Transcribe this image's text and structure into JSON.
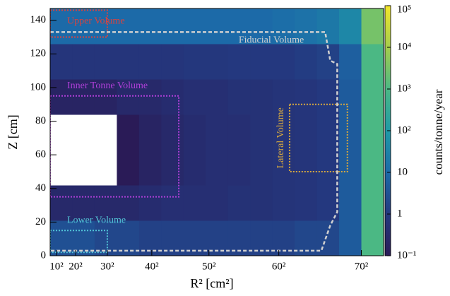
{
  "chart_data": {
    "type": "heatmap",
    "xlabel": "R² [cm²]",
    "ylabel": "Z [cm]",
    "colorbar_label": "counts/tonne/year",
    "xlim": [
      0,
      5250
    ],
    "ylim": [
      0,
      147
    ],
    "xticks": [
      {
        "value": 100,
        "label": "10²"
      },
      {
        "value": 400,
        "label": "20²"
      },
      {
        "value": 900,
        "label": "30²"
      },
      {
        "value": 1600,
        "label": "40²"
      },
      {
        "value": 2500,
        "label": "50²"
      },
      {
        "value": 3600,
        "label": "60²"
      },
      {
        "value": 4900,
        "label": "70²"
      }
    ],
    "yticks": [
      0,
      20,
      40,
      60,
      80,
      100,
      120,
      140
    ],
    "clim": [
      0.1,
      100000
    ],
    "clog": true,
    "cticks": [
      {
        "value": 0.1,
        "label": "10⁻¹"
      },
      1,
      10,
      {
        "value": 100,
        "label": "10²"
      },
      {
        "value": 1000,
        "label": "10³"
      },
      {
        "value": 10000,
        "label": "10⁴"
      },
      {
        "value": 100000,
        "label": "10⁵"
      }
    ],
    "colormap": [
      "#2a1b57",
      "#24387f",
      "#1c6aa8",
      "#1f9aa6",
      "#4bb884",
      "#a5cc4c",
      "#f3e62a"
    ],
    "xbins": [
      0,
      350,
      700,
      1050,
      1400,
      1750,
      2100,
      2450,
      2800,
      3150,
      3500,
      3850,
      4200,
      4550,
      4900,
      5250
    ],
    "ybins": [
      0,
      21,
      42,
      63,
      84,
      105,
      126,
      147
    ],
    "z": [
      [
        3,
        3,
        2,
        2,
        1.5,
        1.5,
        1.5,
        1.5,
        1.5,
        1.5,
        1.5,
        2,
        2,
        5,
        1000
      ],
      [
        0.3,
        0.3,
        0.3,
        0.3,
        0.4,
        0.5,
        0.5,
        0.5,
        0.6,
        0.6,
        0.7,
        0.8,
        1,
        5,
        1000
      ],
      [
        0,
        0,
        0,
        0.1,
        0.2,
        0.3,
        0.4,
        0.5,
        0.5,
        0.6,
        0.7,
        0.8,
        1,
        5,
        1000
      ],
      [
        0,
        0,
        0,
        0.1,
        0.2,
        0.3,
        0.4,
        0.5,
        0.5,
        0.6,
        0.7,
        0.8,
        1,
        5,
        1000
      ],
      [
        0.2,
        0.2,
        0.2,
        0.3,
        0.3,
        0.4,
        0.5,
        0.5,
        0.6,
        0.6,
        0.7,
        0.8,
        1,
        5,
        1000
      ],
      [
        0.8,
        0.8,
        0.8,
        0.8,
        0.8,
        0.8,
        0.9,
        0.9,
        1,
        1,
        1,
        1.2,
        1.5,
        6,
        1000
      ],
      [
        10,
        10,
        10,
        10,
        10,
        10,
        10,
        10,
        10,
        10,
        12,
        15,
        20,
        40,
        3000
      ]
    ],
    "regions": [
      {
        "label": "Upper Volume",
        "color": "#d9433f",
        "x": [
          0,
          900
        ],
        "y": [
          130,
          146
        ]
      },
      {
        "label": "Inner Tonne Volume",
        "color": "#b03fd8",
        "x": [
          0,
          2025
        ],
        "y": [
          35,
          95
        ]
      },
      {
        "label": "Lower Volume",
        "color": "#52c6d8",
        "x": [
          0,
          900
        ],
        "y": [
          2,
          15
        ]
      },
      {
        "label": "Lateral Volume",
        "color": "#d8a93f",
        "x": [
          3770,
          4680
        ],
        "y": [
          50,
          90
        ]
      }
    ],
    "fiducial": {
      "label": "Fiducial Volume",
      "color": "#d0d0d0",
      "x": [
        0,
        4330,
        4410,
        4520,
        4520,
        4410,
        4270,
        0
      ],
      "y": [
        133,
        133,
        116,
        114,
        26,
        18,
        3,
        3
      ]
    }
  }
}
